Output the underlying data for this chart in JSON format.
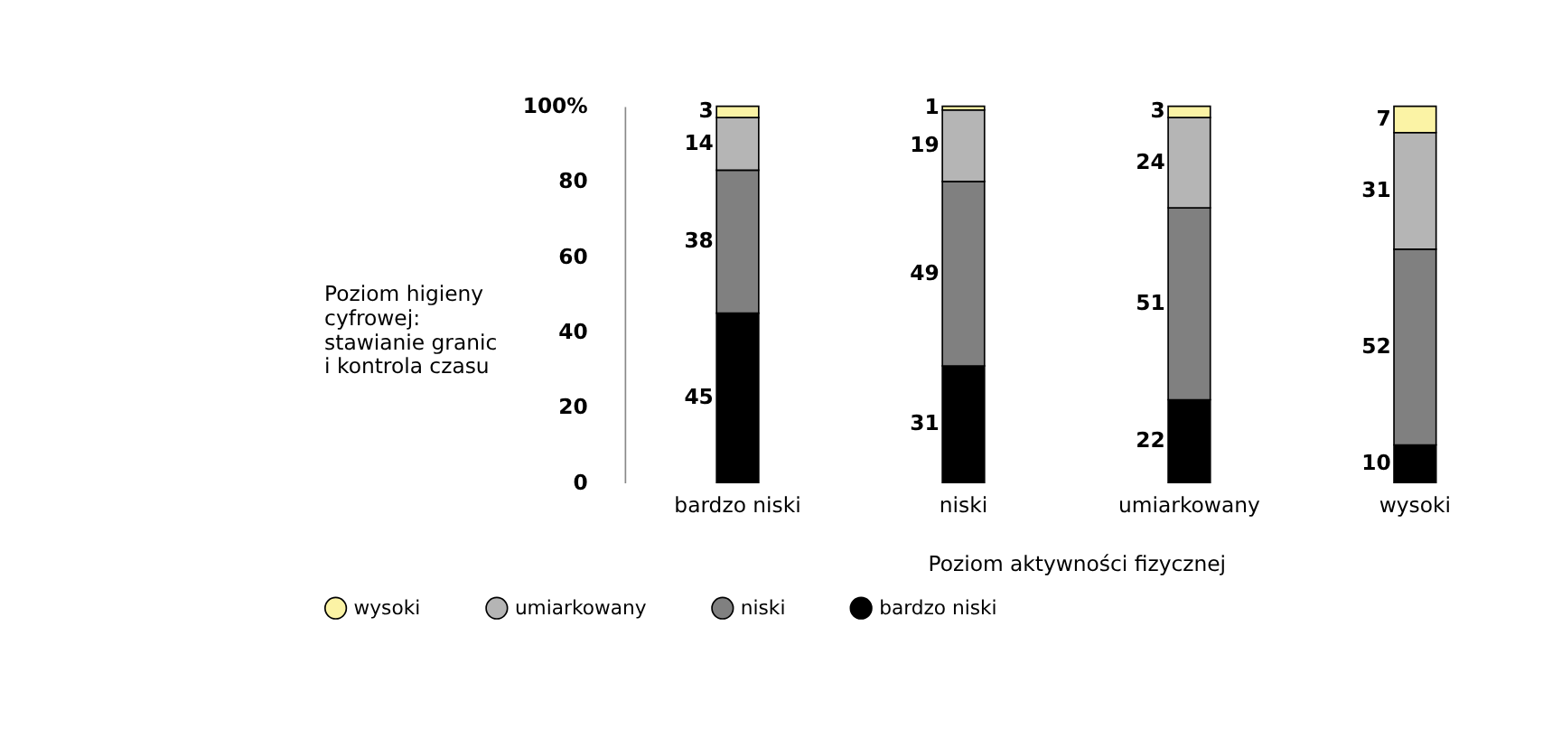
{
  "chart_data": {
    "type": "bar",
    "stacked": true,
    "xlabel": "Poziom aktywności fizycznej",
    "ylabel": "Poziom higieny cyfrowej: stawianie granic i kontrola czasu",
    "categories": [
      "bardzo niski",
      "niski",
      "umiarkowany",
      "wysoki"
    ],
    "series": [
      {
        "name": "bardzo niski",
        "color": "#000000",
        "values": [
          45,
          31,
          22,
          10
        ]
      },
      {
        "name": "niski",
        "color": "#808080",
        "values": [
          38,
          49,
          51,
          52
        ]
      },
      {
        "name": "umiarkowany",
        "color": "#b5b5b5",
        "values": [
          14,
          19,
          24,
          31
        ]
      },
      {
        "name": "wysoki",
        "color": "#fbf3a5",
        "values": [
          3,
          1,
          3,
          7
        ]
      }
    ],
    "ylim": [
      0,
      100
    ],
    "yticks": [
      0,
      20,
      40,
      60,
      80,
      {
        "value": 100,
        "label": "100%"
      }
    ],
    "data_labels": true,
    "grid": false,
    "legend": "bottom"
  }
}
